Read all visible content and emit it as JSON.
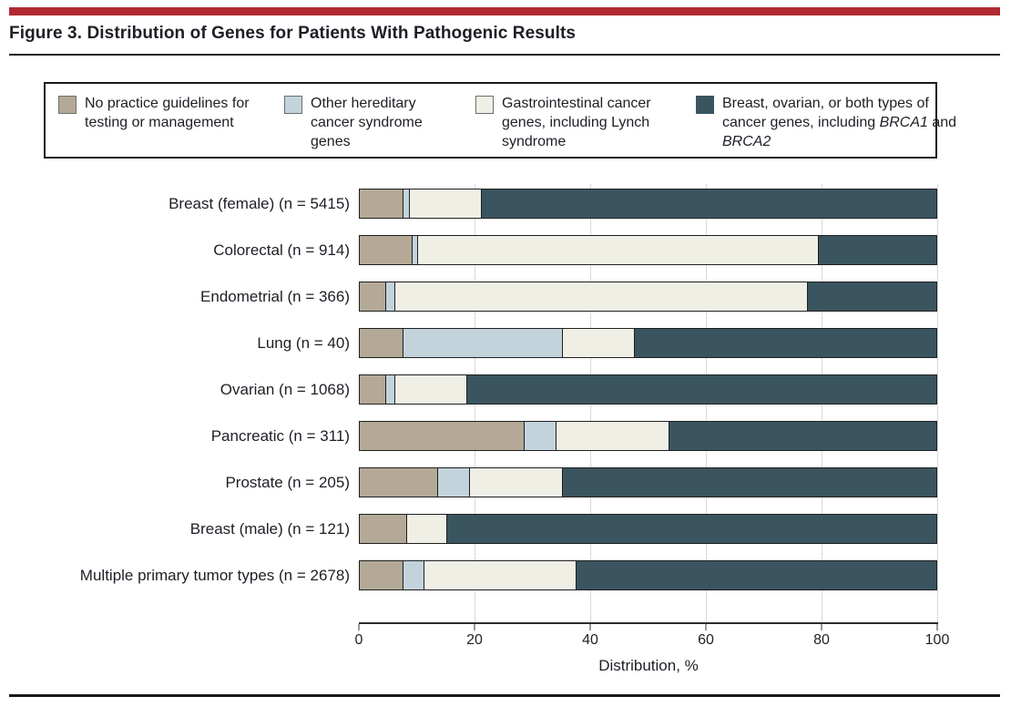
{
  "title": "Figure 3. Distribution of Genes for Patients With Pathogenic Results",
  "legend": {
    "items": [
      {
        "label": "No practice guidelines for testing or management",
        "color": "#b3a996"
      },
      {
        "label": "Other hereditary cancer syndrome genes",
        "color": "#c2d3dc"
      },
      {
        "label": "Gastrointestinal cancer genes, including Lynch syndrome",
        "color": "#f0efe6"
      },
      {
        "label": "Breast, ovarian, or both types of cancer genes, including BRCA1 and BRCA2",
        "color": "#3a5560",
        "italic_words": [
          "BRCA1",
          "BRCA2"
        ]
      }
    ]
  },
  "chart_data": {
    "type": "bar",
    "stacked": true,
    "orientation": "horizontal",
    "title": "Figure 3. Distribution of Genes for Patients With Pathogenic Results",
    "xlabel": "Distribution, %",
    "xlim": [
      0,
      100
    ],
    "xticks": [
      0,
      20,
      40,
      60,
      80,
      100
    ],
    "gridlines": "vertical",
    "legend_position": "top",
    "categories": [
      "Breast (female) (n = 5415)",
      "Colorectal (n = 914)",
      "Endometrial (n = 366)",
      "Lung (n = 40)",
      "Ovarian (n = 1068)",
      "Pancreatic (n = 311)",
      "Prostate (n = 205)",
      "Breast (male) (n = 121)",
      "Multiple primary tumor types (n = 2678)"
    ],
    "sample_sizes": [
      5415,
      914,
      366,
      40,
      1068,
      311,
      205,
      121,
      2678
    ],
    "series": [
      {
        "name": "No practice guidelines for testing or management",
        "color": "#b3a996",
        "values": [
          7.5,
          9,
          4.5,
          7.5,
          4.5,
          28.5,
          13.5,
          8,
          7.5
        ]
      },
      {
        "name": "Other hereditary cancer syndrome genes",
        "color": "#c2d3dc",
        "values": [
          1,
          1,
          1.5,
          27.5,
          1.5,
          5.5,
          5.5,
          0,
          3.5
        ]
      },
      {
        "name": "Gastrointestinal cancer genes, including Lynch syndrome",
        "color": "#f0efe6",
        "values": [
          12.5,
          69.5,
          71.5,
          12.5,
          12.5,
          19.5,
          16,
          7,
          26.5
        ]
      },
      {
        "name": "Breast, ovarian, or both types of cancer genes, including BRCA1 and BRCA2",
        "color": "#3a5560",
        "values": [
          79,
          20.5,
          22.5,
          52.5,
          81.5,
          46.5,
          65,
          85,
          62.5
        ]
      }
    ]
  }
}
